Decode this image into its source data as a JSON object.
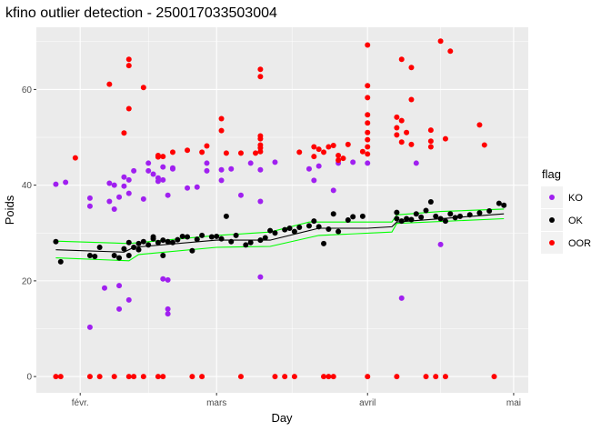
{
  "chart_data": {
    "type": "scatter",
    "title": "kfino outlier detection - 250017033503004",
    "xlabel": "Day",
    "ylabel": "Poids",
    "x_ticks": [
      {
        "date": "02-01",
        "label": "févr."
      },
      {
        "date": "03-01",
        "label": "mars"
      },
      {
        "date": "04-01",
        "label": "avril"
      },
      {
        "date": "05-01",
        "label": "mai"
      }
    ],
    "y_ticks": [
      0,
      20,
      40,
      60
    ],
    "xlim": [
      "01-23",
      "05-04"
    ],
    "ylim": [
      -3.4,
      73
    ],
    "grid": true,
    "legend": {
      "title": "flag",
      "placement": "right"
    },
    "series": [
      {
        "name": "KO",
        "color": "#A020F0",
        "points": [
          [
            "01-27",
            40.2
          ],
          [
            "01-29",
            40.6
          ],
          [
            "02-03",
            37.3
          ],
          [
            "02-03",
            35.6
          ],
          [
            "02-03",
            10.3
          ],
          [
            "02-06",
            18.5
          ],
          [
            "02-07",
            40.4
          ],
          [
            "02-07",
            36.6
          ],
          [
            "02-08",
            35
          ],
          [
            "02-08",
            40
          ],
          [
            "02-09",
            19
          ],
          [
            "02-09",
            14.1
          ],
          [
            "02-09",
            37.5
          ],
          [
            "02-10",
            41.7
          ],
          [
            "02-10",
            39.8
          ],
          [
            "02-11",
            41.1
          ],
          [
            "02-11",
            38.3
          ],
          [
            "02-11",
            16
          ],
          [
            "02-12",
            43
          ],
          [
            "02-14",
            37.1
          ],
          [
            "02-15",
            44.6
          ],
          [
            "02-15",
            43
          ],
          [
            "02-16",
            42.3
          ],
          [
            "02-17",
            41.5
          ],
          [
            "02-17",
            40.8
          ],
          [
            "02-18",
            43.8
          ],
          [
            "02-18",
            41.1
          ],
          [
            "02-18",
            20.4
          ],
          [
            "02-19",
            20.2
          ],
          [
            "02-19",
            14.1
          ],
          [
            "02-19",
            13.1
          ],
          [
            "02-19",
            37.9
          ],
          [
            "02-20",
            43.4
          ],
          [
            "02-20",
            43.6
          ],
          [
            "02-23",
            39.4
          ],
          [
            "02-25",
            39.6
          ],
          [
            "02-27",
            44.6
          ],
          [
            "02-27",
            43
          ],
          [
            "03-02",
            43.2
          ],
          [
            "03-02",
            41
          ],
          [
            "03-04",
            43.4
          ],
          [
            "03-06",
            37.9
          ],
          [
            "03-08",
            44.6
          ],
          [
            "03-10",
            43.2
          ],
          [
            "03-10",
            36.6
          ],
          [
            "03-10",
            20.8
          ],
          [
            "03-13",
            44.8
          ],
          [
            "03-20",
            43.4
          ],
          [
            "03-21",
            41
          ],
          [
            "03-22",
            44
          ],
          [
            "03-25",
            38.9
          ],
          [
            "03-26",
            44.6
          ],
          [
            "03-29",
            44.8
          ],
          [
            "04-01",
            44.6
          ],
          [
            "04-08",
            16.4
          ],
          [
            "04-11",
            44.6
          ],
          [
            "04-16",
            27.6
          ]
        ]
      },
      {
        "name": "OK",
        "color": "#000000",
        "points": [
          [
            "01-27",
            28.2
          ],
          [
            "01-28",
            24
          ],
          [
            "02-03",
            25.3
          ],
          [
            "02-04",
            25.1
          ],
          [
            "02-05",
            27
          ],
          [
            "02-08",
            25.3
          ],
          [
            "02-09",
            24.8
          ],
          [
            "02-10",
            26.7
          ],
          [
            "02-11",
            25.3
          ],
          [
            "02-11",
            28
          ],
          [
            "02-12",
            27
          ],
          [
            "02-13",
            26.5
          ],
          [
            "02-13",
            27.8
          ],
          [
            "02-14",
            28.2
          ],
          [
            "02-15",
            27.5
          ],
          [
            "02-16",
            28.8
          ],
          [
            "02-16",
            29.2
          ],
          [
            "02-17",
            28
          ],
          [
            "02-18",
            25.3
          ],
          [
            "02-18",
            28.5
          ],
          [
            "02-19",
            28.2
          ],
          [
            "02-20",
            28
          ],
          [
            "02-21",
            28.6
          ],
          [
            "02-22",
            29.3
          ],
          [
            "02-23",
            29.2
          ],
          [
            "02-24",
            26.3
          ],
          [
            "02-25",
            28.7
          ],
          [
            "02-26",
            29.5
          ],
          [
            "02-28",
            29.2
          ],
          [
            "03-01",
            29.3
          ],
          [
            "03-02",
            28.8
          ],
          [
            "03-03",
            33.5
          ],
          [
            "03-04",
            28.2
          ],
          [
            "03-05",
            29.5
          ],
          [
            "03-07",
            27.5
          ],
          [
            "03-08",
            28
          ],
          [
            "03-10",
            28.5
          ],
          [
            "03-11",
            29
          ],
          [
            "03-12",
            30.5
          ],
          [
            "03-13",
            30
          ],
          [
            "03-15",
            30.7
          ],
          [
            "03-16",
            31
          ],
          [
            "03-17",
            30.3
          ],
          [
            "03-18",
            31.2
          ],
          [
            "03-20",
            31.5
          ],
          [
            "03-21",
            32.5
          ],
          [
            "03-22",
            31.3
          ],
          [
            "03-23",
            27.8
          ],
          [
            "03-24",
            30.8
          ],
          [
            "03-25",
            34
          ],
          [
            "03-26",
            30.3
          ],
          [
            "03-28",
            32.7
          ],
          [
            "03-29",
            33.4
          ],
          [
            "03-31",
            33.5
          ],
          [
            "04-07",
            33
          ],
          [
            "04-07",
            34.3
          ],
          [
            "04-08",
            32.5
          ],
          [
            "04-09",
            33
          ],
          [
            "04-10",
            32.8
          ],
          [
            "04-11",
            34
          ],
          [
            "04-12",
            33.3
          ],
          [
            "04-13",
            34.7
          ],
          [
            "04-14",
            36.5
          ],
          [
            "04-15",
            33.5
          ],
          [
            "04-16",
            33
          ],
          [
            "04-17",
            32.5
          ],
          [
            "04-18",
            34
          ],
          [
            "04-19",
            33.2
          ],
          [
            "04-20",
            33.5
          ],
          [
            "04-22",
            33.8
          ],
          [
            "04-24",
            34.2
          ],
          [
            "04-26",
            34.6
          ],
          [
            "04-28",
            36.2
          ],
          [
            "04-29",
            35.8
          ]
        ]
      },
      {
        "name": "OOR",
        "color": "#FF0000",
        "points": [
          [
            "01-27",
            0
          ],
          [
            "01-28",
            0
          ],
          [
            "02-03",
            0
          ],
          [
            "02-05",
            0
          ],
          [
            "02-08",
            0
          ],
          [
            "02-11",
            0
          ],
          [
            "02-12",
            0
          ],
          [
            "02-14",
            0
          ],
          [
            "02-17",
            0
          ],
          [
            "02-18",
            0
          ],
          [
            "02-24",
            0
          ],
          [
            "02-26",
            0
          ],
          [
            "03-06",
            0
          ],
          [
            "03-13",
            0
          ],
          [
            "03-15",
            0
          ],
          [
            "03-17",
            0
          ],
          [
            "03-23",
            0
          ],
          [
            "03-24",
            0
          ],
          [
            "03-25",
            0
          ],
          [
            "04-01",
            0
          ],
          [
            "04-07",
            0
          ],
          [
            "04-13",
            0
          ],
          [
            "04-15",
            0
          ],
          [
            "04-17",
            0
          ],
          [
            "04-27",
            0
          ],
          [
            "01-31",
            45.7
          ],
          [
            "02-07",
            61.1
          ],
          [
            "02-10",
            50.9
          ],
          [
            "02-11",
            66.3
          ],
          [
            "02-11",
            65
          ],
          [
            "02-11",
            56
          ],
          [
            "02-14",
            60.4
          ],
          [
            "02-17",
            46.2
          ],
          [
            "02-17",
            45.9
          ],
          [
            "02-18",
            46
          ],
          [
            "02-20",
            46.9
          ],
          [
            "02-23",
            47.3
          ],
          [
            "02-26",
            46.9
          ],
          [
            "02-27",
            48.2
          ],
          [
            "03-02",
            53.9
          ],
          [
            "03-02",
            51.4
          ],
          [
            "03-03",
            46.7
          ],
          [
            "03-06",
            46.7
          ],
          [
            "03-09",
            46.7
          ],
          [
            "03-10",
            64.2
          ],
          [
            "03-10",
            62.7
          ],
          [
            "03-10",
            50.3
          ],
          [
            "03-10",
            49.7
          ],
          [
            "03-10",
            48.4
          ],
          [
            "03-10",
            47.8
          ],
          [
            "03-10",
            47
          ],
          [
            "03-18",
            46.9
          ],
          [
            "03-21",
            48
          ],
          [
            "03-21",
            46
          ],
          [
            "03-22",
            47.5
          ],
          [
            "03-23",
            46.9
          ],
          [
            "03-24",
            48
          ],
          [
            "03-25",
            48.3
          ],
          [
            "03-26",
            46.2
          ],
          [
            "03-26",
            45.2
          ],
          [
            "03-27",
            45.6
          ],
          [
            "03-28",
            48.5
          ],
          [
            "03-31",
            47
          ],
          [
            "04-01",
            69.3
          ],
          [
            "04-01",
            60.8
          ],
          [
            "04-01",
            58.3
          ],
          [
            "04-01",
            54.7
          ],
          [
            "04-01",
            53
          ],
          [
            "04-01",
            51
          ],
          [
            "04-01",
            49.5
          ],
          [
            "04-01",
            48
          ],
          [
            "04-01",
            46.5
          ],
          [
            "04-07",
            54.2
          ],
          [
            "04-07",
            52
          ],
          [
            "04-07",
            50.5
          ],
          [
            "04-08",
            66.3
          ],
          [
            "04-08",
            53.5
          ],
          [
            "04-08",
            49
          ],
          [
            "04-09",
            51
          ],
          [
            "04-10",
            64.6
          ],
          [
            "04-10",
            57.9
          ],
          [
            "04-10",
            48.5
          ],
          [
            "04-14",
            51.5
          ],
          [
            "04-14",
            49.2
          ],
          [
            "04-14",
            48
          ],
          [
            "04-16",
            70.1
          ],
          [
            "04-17",
            49.7
          ],
          [
            "04-18",
            68
          ],
          [
            "04-24",
            52.6
          ],
          [
            "04-25",
            48.4
          ]
        ]
      }
    ],
    "lines": [
      {
        "role": "median",
        "color": "#000000",
        "points": [
          [
            "01-27",
            26.5
          ],
          [
            "02-10",
            26
          ],
          [
            "02-12",
            27
          ],
          [
            "03-01",
            28.5
          ],
          [
            "03-12",
            28.5
          ],
          [
            "03-22",
            31
          ],
          [
            "04-01",
            31
          ],
          [
            "04-06",
            31.3
          ],
          [
            "04-07",
            32.3
          ],
          [
            "04-29",
            34
          ]
        ]
      },
      {
        "role": "lower",
        "color": "#00FF00",
        "points": [
          [
            "01-27",
            24.8
          ],
          [
            "02-11",
            24.2
          ],
          [
            "02-13",
            25.5
          ],
          [
            "03-01",
            27
          ],
          [
            "03-12",
            27.2
          ],
          [
            "03-22",
            29.5
          ],
          [
            "04-06",
            30.2
          ],
          [
            "04-07",
            32
          ],
          [
            "04-29",
            33
          ]
        ]
      },
      {
        "role": "upper",
        "color": "#00FF00",
        "points": [
          [
            "01-27",
            28.3
          ],
          [
            "02-11",
            27.8
          ],
          [
            "02-13",
            28
          ],
          [
            "03-01",
            29.5
          ],
          [
            "03-12",
            30.2
          ],
          [
            "03-20",
            32.3
          ],
          [
            "04-06",
            32.3
          ],
          [
            "04-07",
            33.8
          ],
          [
            "04-16",
            34.5
          ],
          [
            "04-29",
            35
          ]
        ]
      }
    ]
  }
}
